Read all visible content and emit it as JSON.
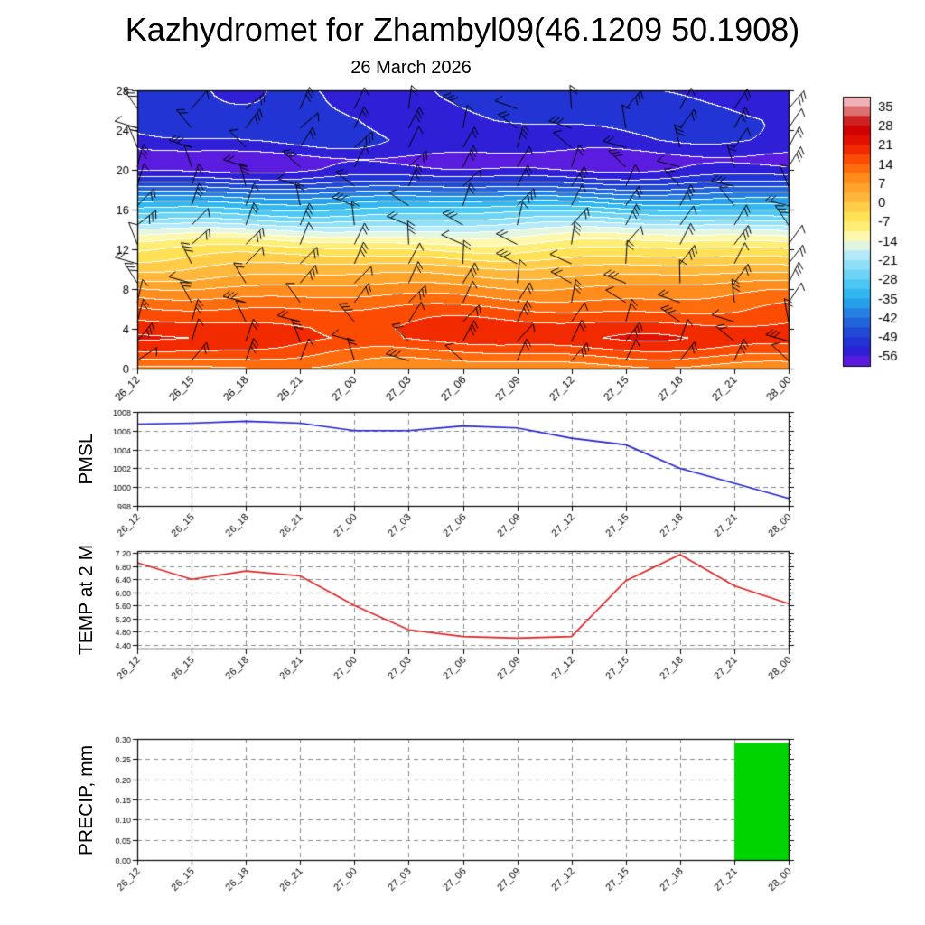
{
  "header": {
    "title": "Kazhydromet for Zhambyl09(46.1209 50.1908)"
  },
  "time_labels": [
    "26_12",
    "26_15",
    "26_18",
    "26_21",
    "27_00",
    "27_03",
    "27_06",
    "27_09",
    "27_12",
    "27_15",
    "27_18",
    "27_21",
    "28_00"
  ],
  "chart_data": [
    {
      "type": "heatmap",
      "name": "temperature-wind-cross-section",
      "title": "26 March 2026",
      "ylim": [
        0,
        28
      ],
      "yticks": [
        0,
        4,
        8,
        12,
        16,
        20,
        24,
        28
      ],
      "grid": false,
      "legend_position": "right-colorbar",
      "colorbar_ticks": [
        35,
        28,
        21,
        14,
        7,
        0,
        -7,
        -14,
        -21,
        -28,
        -35,
        -42,
        -49,
        -56
      ],
      "contour_interval": 3.5,
      "color_stops": [
        [
          -63,
          "#9b30d9"
        ],
        [
          -59.5,
          "#7a1fe0"
        ],
        [
          -56,
          "#3a18dd"
        ],
        [
          -52.5,
          "#2428d2"
        ],
        [
          -49,
          "#1f3fd4"
        ],
        [
          -45.5,
          "#2256d8"
        ],
        [
          -42,
          "#2472de"
        ],
        [
          -38.5,
          "#2590e6"
        ],
        [
          -35,
          "#27aeee"
        ],
        [
          -31.5,
          "#3cc0f2"
        ],
        [
          -28,
          "#5ccff5"
        ],
        [
          -24.5,
          "#7edaf7"
        ],
        [
          -21,
          "#a0e5fa"
        ],
        [
          -17.5,
          "#c8eef8"
        ],
        [
          -14,
          "#fdfdc8"
        ],
        [
          -10.5,
          "#fdf48e"
        ],
        [
          -7,
          "#ffe95e"
        ],
        [
          -3.5,
          "#ffd94e"
        ],
        [
          0,
          "#ffc143"
        ],
        [
          3.5,
          "#ffae33"
        ],
        [
          7,
          "#ff9a22"
        ],
        [
          10.5,
          "#ff7d15"
        ],
        [
          14,
          "#ff5c08"
        ],
        [
          17.5,
          "#f83b00"
        ],
        [
          21,
          "#ea1900"
        ],
        [
          24.5,
          "#d90700"
        ],
        [
          28,
          "#c90000"
        ],
        [
          31.5,
          "#d24444"
        ],
        [
          35,
          "#eb9a9e"
        ],
        [
          38.5,
          "#f6c9cf"
        ]
      ],
      "profile_heights": [
        0,
        0.5,
        2,
        3,
        4,
        6,
        8,
        10,
        12,
        13,
        14,
        15,
        16,
        17,
        18,
        19,
        20,
        21,
        22,
        23,
        25,
        28
      ],
      "profile_temps": [
        9,
        11,
        17,
        20,
        19,
        14,
        8,
        1,
        -7,
        -12,
        -18,
        -25,
        -31,
        -37,
        -44,
        -51,
        -56,
        -58,
        -55,
        -53,
        -52,
        -52.5
      ],
      "surface_warm_maxima_near": [
        "26_15",
        "27_18"
      ],
      "overlay": "wind-barbs-black"
    },
    {
      "type": "line",
      "name": "pmsl",
      "ylabel": "PMSL",
      "color": "#2222cc",
      "values": [
        1006.7,
        1006.8,
        1007.0,
        1006.8,
        1006.0,
        1006.0,
        1006.5,
        1006.3,
        1005.2,
        1004.5,
        1002.0,
        1000.4,
        998.8
      ],
      "ylim": [
        998,
        1008
      ],
      "yticks": [
        998,
        1000,
        1002,
        1004,
        1006,
        1008
      ],
      "ytick_labels": [
        "998",
        "1000",
        "1002",
        "1004",
        "1006",
        "1008"
      ],
      "grid": "dashed"
    },
    {
      "type": "line",
      "name": "temp-2m",
      "ylabel": "TEMP at 2 M",
      "color": "#dd2222",
      "values": [
        6.9,
        6.4,
        6.65,
        6.5,
        5.6,
        4.85,
        4.65,
        4.6,
        4.65,
        6.35,
        7.15,
        6.2,
        5.65
      ],
      "ylim": [
        4.28,
        7.26
      ],
      "yticks": [
        4.4,
        4.8,
        5.2,
        5.6,
        6.0,
        6.4,
        6.8,
        7.2
      ],
      "ytick_labels": [
        "4.40",
        "4.80",
        "5.20",
        "5.60",
        "6.00",
        "6.40",
        "6.80",
        "7.20"
      ],
      "grid": "dashed"
    },
    {
      "type": "bar",
      "name": "precip",
      "ylabel": "PRECIP, mm",
      "color": "#00d400",
      "values": [
        0,
        0,
        0,
        0,
        0,
        0,
        0,
        0,
        0,
        0,
        0,
        0,
        0.29
      ],
      "bar_note": "single bar spans interval 27_21 to 28_00",
      "ylim": [
        0,
        0.3
      ],
      "yticks": [
        0.0,
        0.05,
        0.1,
        0.15,
        0.2,
        0.25,
        0.3
      ],
      "ytick_labels": [
        "0.00",
        "0.05",
        "0.10",
        "0.15",
        "0.20",
        "0.25",
        "0.30"
      ],
      "grid": "dashed"
    }
  ]
}
